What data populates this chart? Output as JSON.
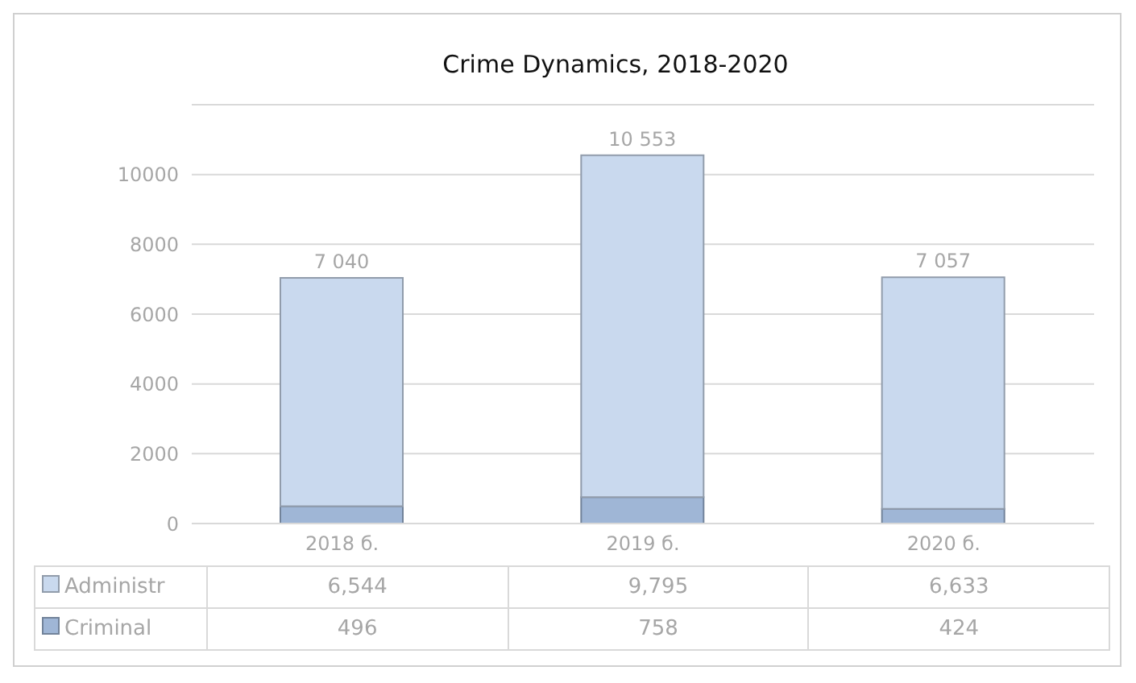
{
  "chart_data": {
    "type": "bar",
    "title": "Crime Dynamics, 2018-2020",
    "categories": [
      "2018 б.",
      "2019 б.",
      "2020 б."
    ],
    "stacked": true,
    "series": [
      {
        "name": "Criminal",
        "color": "#9fb6d6",
        "values": [
          496,
          758,
          424
        ],
        "value_labels": [
          "496",
          "758",
          "424"
        ]
      },
      {
        "name": "Administr",
        "color": "#c9d9ee",
        "values": [
          6544,
          9795,
          6633
        ],
        "value_labels": [
          "6,544",
          "9,795",
          "6,633"
        ]
      }
    ],
    "totals": [
      "7 040",
      "10 553",
      "7 057"
    ],
    "ylim": [
      0,
      12000
    ],
    "yticks": [
      0,
      2000,
      4000,
      6000,
      8000,
      10000
    ],
    "grid": "y",
    "legend": "bottom left"
  }
}
